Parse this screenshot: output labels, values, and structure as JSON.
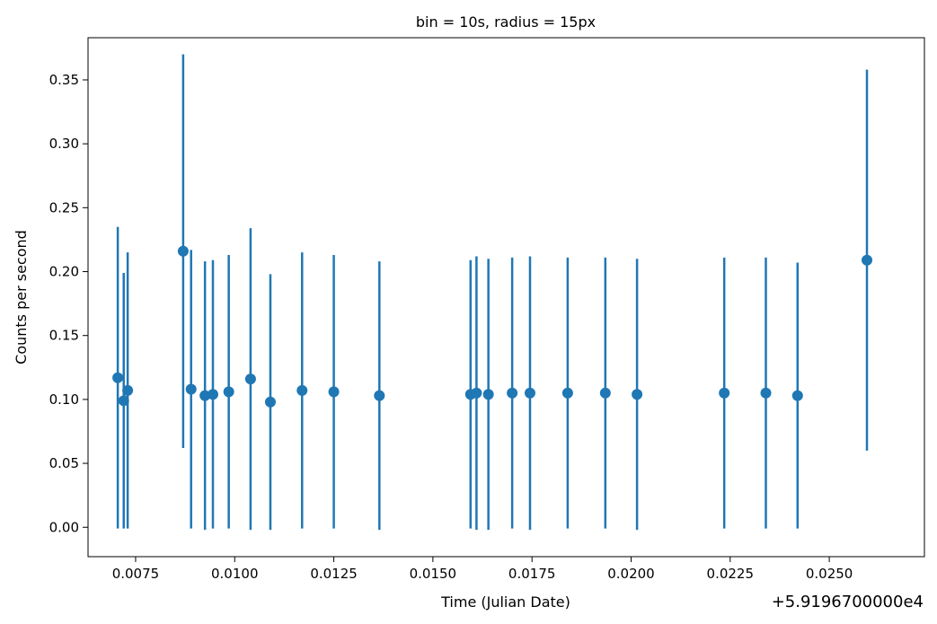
{
  "chart_data": {
    "type": "scatter",
    "title": "bin = 10s, radius = 15px",
    "xlabel": "Time (Julian Date)",
    "ylabel": "Counts per second",
    "x_offset_label": "+5.9196700000e4",
    "xlim": [
      0.0063,
      0.0274
    ],
    "ylim": [
      -0.023,
      0.383
    ],
    "xticks": [
      0.0075,
      0.01,
      0.0125,
      0.015,
      0.0175,
      0.02,
      0.0225,
      0.025
    ],
    "xtick_labels": [
      "0.0075",
      "0.0100",
      "0.0125",
      "0.0150",
      "0.0175",
      "0.0200",
      "0.0225",
      "0.0250"
    ],
    "yticks": [
      0.0,
      0.05,
      0.1,
      0.15,
      0.2,
      0.25,
      0.3,
      0.35
    ],
    "ytick_labels": [
      "0.00",
      "0.05",
      "0.10",
      "0.15",
      "0.20",
      "0.25",
      "0.30",
      "0.35"
    ],
    "color": "#1f77b4",
    "grid": false,
    "series": [
      {
        "points": [
          {
            "x": 0.00705,
            "y": 0.117,
            "err": 0.118
          },
          {
            "x": 0.0072,
            "y": 0.099,
            "err": 0.1
          },
          {
            "x": 0.0073,
            "y": 0.107,
            "err": 0.108
          },
          {
            "x": 0.0087,
            "y": 0.216,
            "err": 0.154
          },
          {
            "x": 0.0089,
            "y": 0.108,
            "err": 0.109
          },
          {
            "x": 0.00925,
            "y": 0.103,
            "err": 0.105
          },
          {
            "x": 0.00945,
            "y": 0.104,
            "err": 0.105
          },
          {
            "x": 0.00985,
            "y": 0.106,
            "err": 0.107
          },
          {
            "x": 0.0104,
            "y": 0.116,
            "err": 0.118
          },
          {
            "x": 0.0109,
            "y": 0.098,
            "err": 0.1
          },
          {
            "x": 0.0117,
            "y": 0.107,
            "err": 0.108
          },
          {
            "x": 0.0125,
            "y": 0.106,
            "err": 0.107
          },
          {
            "x": 0.01365,
            "y": 0.103,
            "err": 0.105
          },
          {
            "x": 0.01595,
            "y": 0.104,
            "err": 0.105
          },
          {
            "x": 0.0161,
            "y": 0.105,
            "err": 0.107
          },
          {
            "x": 0.0164,
            "y": 0.104,
            "err": 0.106
          },
          {
            "x": 0.017,
            "y": 0.105,
            "err": 0.106
          },
          {
            "x": 0.01745,
            "y": 0.105,
            "err": 0.107
          },
          {
            "x": 0.0184,
            "y": 0.105,
            "err": 0.106
          },
          {
            "x": 0.01935,
            "y": 0.105,
            "err": 0.106
          },
          {
            "x": 0.02015,
            "y": 0.104,
            "err": 0.106
          },
          {
            "x": 0.02235,
            "y": 0.105,
            "err": 0.106
          },
          {
            "x": 0.0234,
            "y": 0.105,
            "err": 0.106
          },
          {
            "x": 0.0242,
            "y": 0.103,
            "err": 0.104
          },
          {
            "x": 0.02595,
            "y": 0.209,
            "err": 0.149
          }
        ]
      }
    ]
  }
}
